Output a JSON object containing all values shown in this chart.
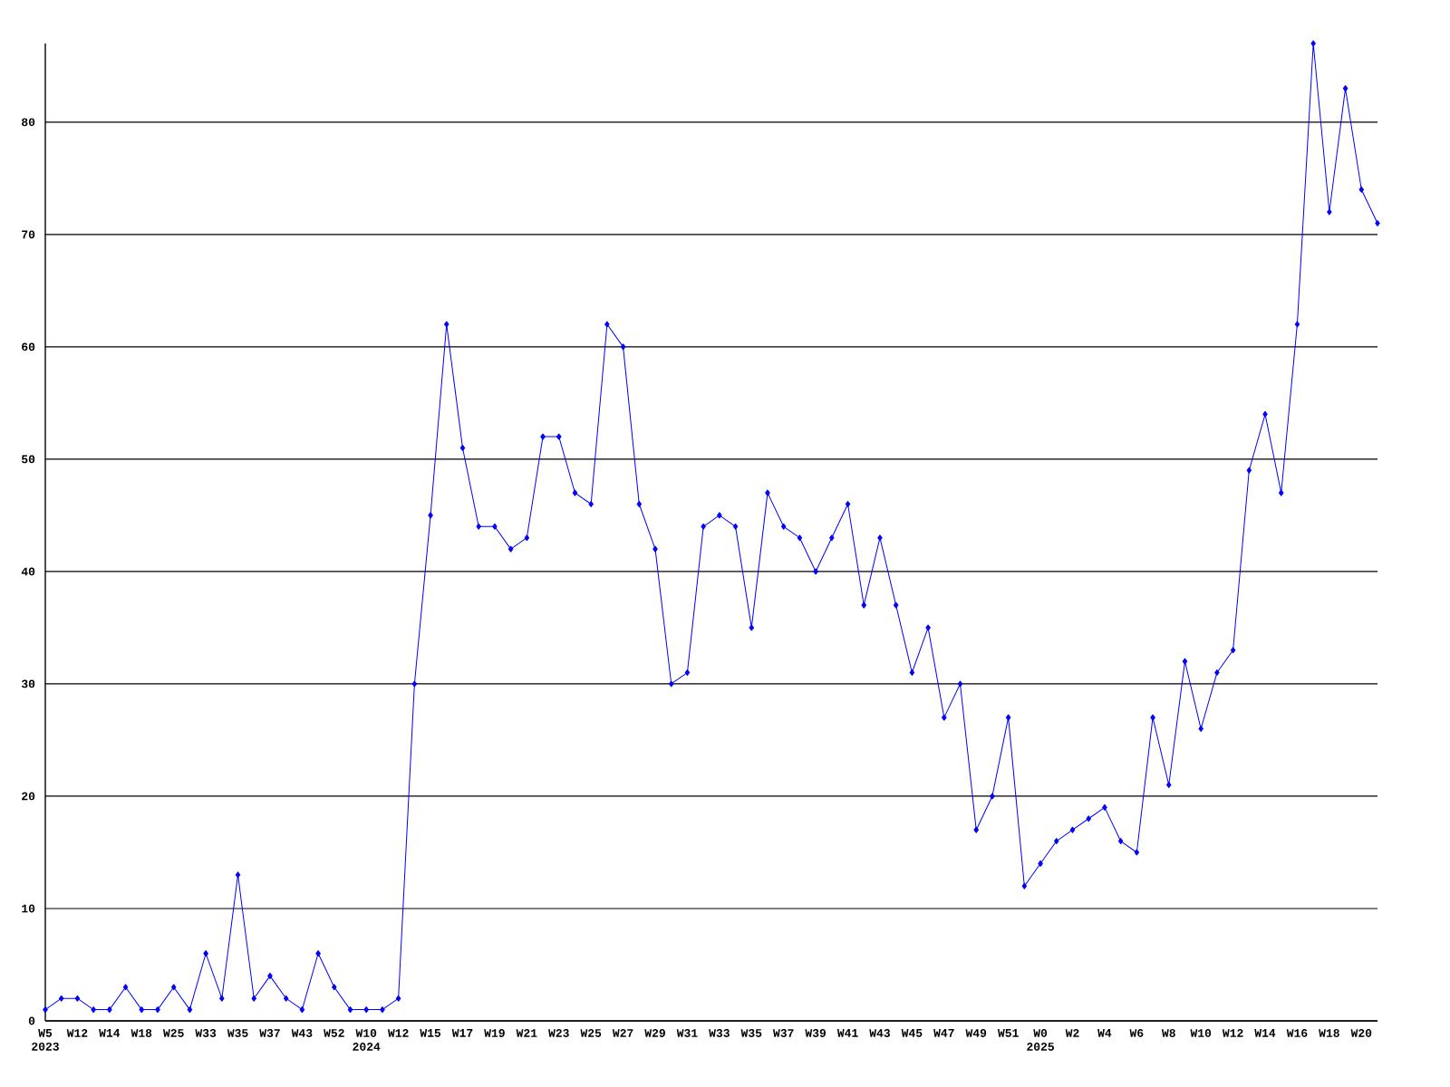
{
  "chart_data": {
    "type": "line",
    "categories": [
      "W5 2023",
      null,
      "W12",
      null,
      "W14",
      null,
      "W18",
      null,
      "W25",
      null,
      "W33",
      null,
      "W35",
      null,
      "W37",
      null,
      "W43",
      null,
      "W52",
      null,
      "W10 2024",
      null,
      "W12",
      null,
      "W15",
      null,
      "W17",
      null,
      "W19",
      null,
      "W21",
      null,
      "W23",
      null,
      "W25",
      null,
      "W27",
      null,
      "W29",
      null,
      "W31",
      null,
      "W33",
      null,
      "W35",
      null,
      "W37",
      null,
      "W39",
      null,
      "W41",
      null,
      "W43",
      null,
      "W45",
      null,
      "W47",
      null,
      "W49",
      null,
      "W51",
      null,
      "W0 2025",
      null,
      "W2",
      null,
      "W4",
      null,
      "W6",
      null,
      "W8",
      null,
      "W10",
      null,
      "W12",
      null,
      "W14",
      null,
      "W16",
      null,
      "W18",
      null,
      "W20",
      null
    ],
    "values": [
      1,
      2,
      2,
      1,
      1,
      3,
      1,
      1,
      3,
      1,
      6,
      2,
      13,
      2,
      4,
      2,
      1,
      6,
      3,
      1,
      1,
      1,
      2,
      30,
      45,
      62,
      51,
      44,
      44,
      42,
      43,
      52,
      52,
      47,
      46,
      62,
      60,
      46,
      42,
      30,
      31,
      44,
      45,
      44,
      35,
      47,
      44,
      43,
      40,
      43,
      46,
      37,
      43,
      37,
      31,
      35,
      27,
      30,
      17,
      20,
      27,
      12,
      14,
      16,
      17,
      18,
      19,
      16,
      15,
      27,
      21,
      32,
      26,
      31,
      33,
      49,
      54,
      47,
      62,
      87,
      72,
      83,
      74,
      71
    ],
    "color": "#0000ff",
    "ylim": [
      0,
      87
    ],
    "yticks": [
      0,
      10,
      20,
      30,
      40,
      50,
      60,
      70,
      80
    ],
    "grid": "y",
    "marker": "diamond",
    "line_style": "solid"
  }
}
